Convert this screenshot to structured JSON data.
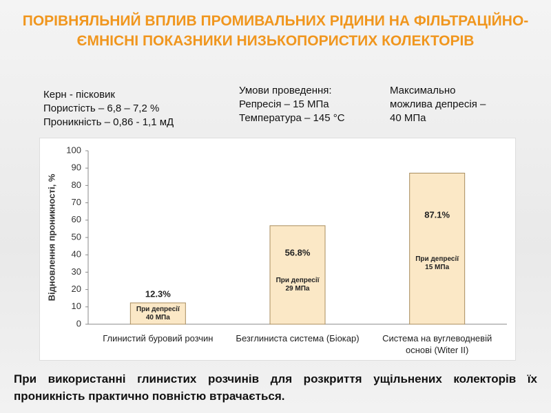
{
  "slide": {
    "title": "ПОРІВНЯЛЬНИЙ ВПЛИВ ПРОМИВАЛЬНИХ РІДИНИ НА ФІЛЬТРАЦІЙНО-ЄМНІСНІ ПОКАЗНИКИ НИЗЬКОПОРИСТИХ КОЛЕКТОРІВ",
    "info": [
      [
        "Керн - пісковик",
        "Пористість – 6,8 – 7,2 %",
        "Проникність – 0,86 - 1,1 мД"
      ],
      [
        "Умови проведення:",
        "Репресія – 15 МПа",
        "Температура – 145 °С"
      ],
      [
        "Максимально",
        "можлива депресія –",
        "40 МПа"
      ]
    ],
    "conclusion": "При використанні глинистих розчинів для розкриття ущільнених колекторів їх проникність практично повністю втрачається."
  },
  "chart_data": {
    "type": "bar",
    "y_label": "Відновлення проникності, %",
    "categories": [
      "Глинистий буровий розчин",
      "Безглиниста система (Біокар)",
      "Система на вуглеводневій основі (Witer II)"
    ],
    "values": [
      12.3,
      56.8,
      87.1
    ],
    "value_labels": [
      "12.3%",
      "56.8%",
      "87.1%"
    ],
    "bar_notes": [
      [
        "При депресії",
        "40 МПа"
      ],
      [
        "При депресії",
        "29 МПа"
      ],
      [
        "При депресії",
        "15 МПа"
      ]
    ],
    "color": "#fbe8c6",
    "ylim": [
      0,
      100
    ],
    "yticks": [
      0,
      10,
      20,
      30,
      40,
      50,
      60,
      70,
      80,
      90,
      100
    ]
  }
}
